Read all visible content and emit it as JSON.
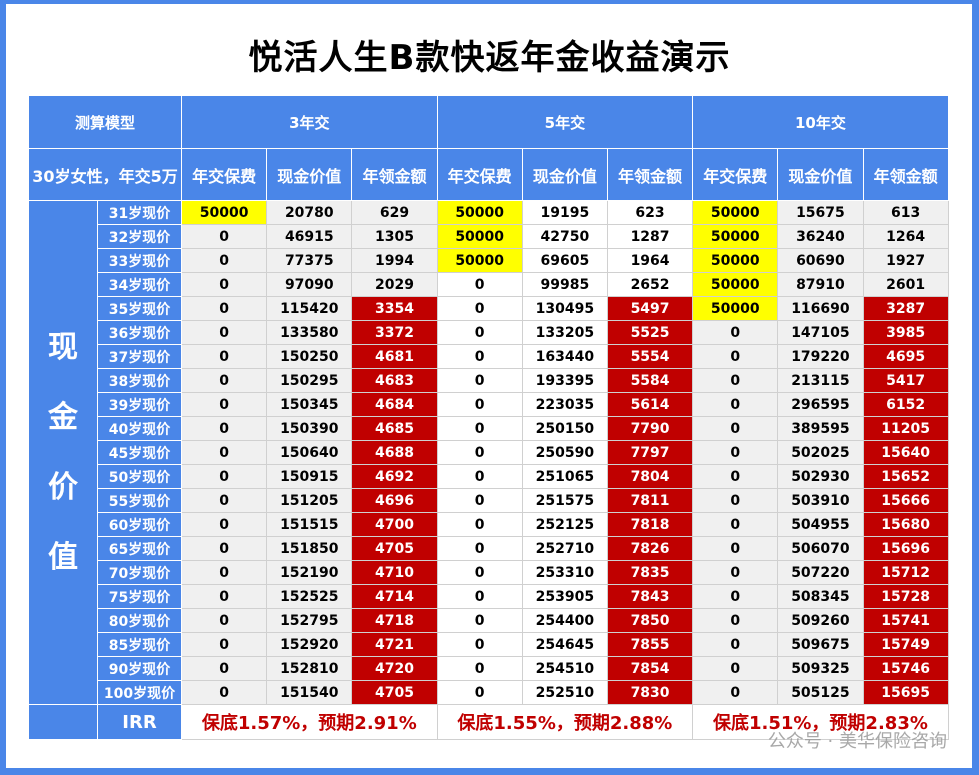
{
  "title": "悦活人生B款快返年金收益演示",
  "header": {
    "model_label": "测算模型",
    "profile_label": "30岁女性，年交5万",
    "groups": [
      "3年交",
      "5年交",
      "10年交"
    ],
    "columns": [
      "年交保费",
      "现金价值",
      "年领金额"
    ]
  },
  "side_label": [
    "现",
    "金",
    "价",
    "值"
  ],
  "colors": {
    "frame": "#4a86e8",
    "highlight_premium": "#ffff00",
    "highlight_payout": "#c00000"
  },
  "rows": [
    {
      "age": "31岁现价",
      "v": [
        [
          "50000",
          "20780",
          "629"
        ],
        [
          "50000",
          "19195",
          "623"
        ],
        [
          "50000",
          "15675",
          "613"
        ]
      ]
    },
    {
      "age": "32岁现价",
      "v": [
        [
          "0",
          "46915",
          "1305"
        ],
        [
          "50000",
          "42750",
          "1287"
        ],
        [
          "50000",
          "36240",
          "1264"
        ]
      ]
    },
    {
      "age": "33岁现价",
      "v": [
        [
          "0",
          "77375",
          "1994"
        ],
        [
          "50000",
          "69605",
          "1964"
        ],
        [
          "50000",
          "60690",
          "1927"
        ]
      ]
    },
    {
      "age": "34岁现价",
      "v": [
        [
          "0",
          "97090",
          "2029"
        ],
        [
          "0",
          "99985",
          "2652"
        ],
        [
          "50000",
          "87910",
          "2601"
        ]
      ]
    },
    {
      "age": "35岁现价",
      "v": [
        [
          "0",
          "115420",
          "3354"
        ],
        [
          "0",
          "130495",
          "5497"
        ],
        [
          "50000",
          "116690",
          "3287"
        ]
      ]
    },
    {
      "age": "36岁现价",
      "v": [
        [
          "0",
          "133580",
          "3372"
        ],
        [
          "0",
          "133205",
          "5525"
        ],
        [
          "0",
          "147105",
          "3985"
        ]
      ]
    },
    {
      "age": "37岁现价",
      "v": [
        [
          "0",
          "150250",
          "4681"
        ],
        [
          "0",
          "163440",
          "5554"
        ],
        [
          "0",
          "179220",
          "4695"
        ]
      ]
    },
    {
      "age": "38岁现价",
      "v": [
        [
          "0",
          "150295",
          "4683"
        ],
        [
          "0",
          "193395",
          "5584"
        ],
        [
          "0",
          "213115",
          "5417"
        ]
      ]
    },
    {
      "age": "39岁现价",
      "v": [
        [
          "0",
          "150345",
          "4684"
        ],
        [
          "0",
          "223035",
          "5614"
        ],
        [
          "0",
          "296595",
          "6152"
        ]
      ]
    },
    {
      "age": "40岁现价",
      "v": [
        [
          "0",
          "150390",
          "4685"
        ],
        [
          "0",
          "250150",
          "7790"
        ],
        [
          "0",
          "389595",
          "11205"
        ]
      ]
    },
    {
      "age": "45岁现价",
      "v": [
        [
          "0",
          "150640",
          "4688"
        ],
        [
          "0",
          "250590",
          "7797"
        ],
        [
          "0",
          "502025",
          "15640"
        ]
      ]
    },
    {
      "age": "50岁现价",
      "v": [
        [
          "0",
          "150915",
          "4692"
        ],
        [
          "0",
          "251065",
          "7804"
        ],
        [
          "0",
          "502930",
          "15652"
        ]
      ]
    },
    {
      "age": "55岁现价",
      "v": [
        [
          "0",
          "151205",
          "4696"
        ],
        [
          "0",
          "251575",
          "7811"
        ],
        [
          "0",
          "503910",
          "15666"
        ]
      ]
    },
    {
      "age": "60岁现价",
      "v": [
        [
          "0",
          "151515",
          "4700"
        ],
        [
          "0",
          "252125",
          "7818"
        ],
        [
          "0",
          "504955",
          "15680"
        ]
      ]
    },
    {
      "age": "65岁现价",
      "v": [
        [
          "0",
          "151850",
          "4705"
        ],
        [
          "0",
          "252710",
          "7826"
        ],
        [
          "0",
          "506070",
          "15696"
        ]
      ]
    },
    {
      "age": "70岁现价",
      "v": [
        [
          "0",
          "152190",
          "4710"
        ],
        [
          "0",
          "253310",
          "7835"
        ],
        [
          "0",
          "507220",
          "15712"
        ]
      ]
    },
    {
      "age": "75岁现价",
      "v": [
        [
          "0",
          "152525",
          "4714"
        ],
        [
          "0",
          "253905",
          "7843"
        ],
        [
          "0",
          "508345",
          "15728"
        ]
      ]
    },
    {
      "age": "80岁现价",
      "v": [
        [
          "0",
          "152795",
          "4718"
        ],
        [
          "0",
          "254400",
          "7850"
        ],
        [
          "0",
          "509260",
          "15741"
        ]
      ]
    },
    {
      "age": "85岁现价",
      "v": [
        [
          "0",
          "152920",
          "4721"
        ],
        [
          "0",
          "254645",
          "7855"
        ],
        [
          "0",
          "509675",
          "15749"
        ]
      ]
    },
    {
      "age": "90岁现价",
      "v": [
        [
          "0",
          "152810",
          "4720"
        ],
        [
          "0",
          "254510",
          "7854"
        ],
        [
          "0",
          "509325",
          "15746"
        ]
      ]
    },
    {
      "age": "100岁现价",
      "v": [
        [
          "0",
          "151540",
          "4705"
        ],
        [
          "0",
          "252510",
          "7830"
        ],
        [
          "0",
          "505125",
          "15695"
        ]
      ]
    }
  ],
  "irr": {
    "label": "IRR",
    "values": [
      "保底1.57%，预期2.91%",
      "保底1.55%，预期2.88%",
      "保底1.51%，预期2.83%"
    ]
  },
  "footer": "公众号 · 美华保险咨询"
}
